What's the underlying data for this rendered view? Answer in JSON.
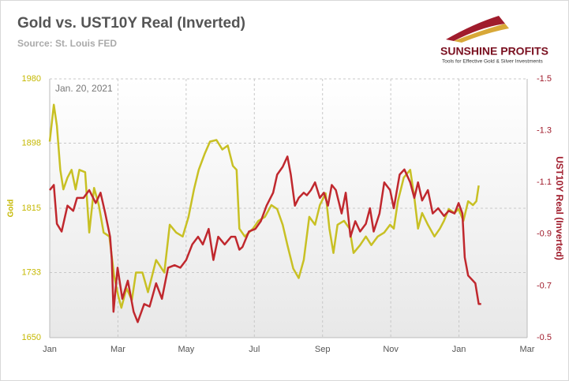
{
  "chart_data": {
    "type": "line",
    "title": "Gold vs. UST10Y Real (Inverted)",
    "subtitle": "Source: St. Louis FED",
    "annotation": "Jan. 20, 2021",
    "logo": {
      "name": "SUNSHINE PROFITS",
      "tagline": "Tools for Effective Gold & Silver Investments"
    },
    "ylabel": "Gold",
    "y2label": "UST10Y Real (Inverted)",
    "xlim": [
      0,
      14
    ],
    "xticks": [
      {
        "value": 0,
        "label": "Jan"
      },
      {
        "value": 2,
        "label": "Mar"
      },
      {
        "value": 4,
        "label": "May"
      },
      {
        "value": 6,
        "label": "Jul"
      },
      {
        "value": 8,
        "label": "Sep"
      },
      {
        "value": 10,
        "label": "Nov"
      },
      {
        "value": 12,
        "label": "Jan"
      },
      {
        "value": 14,
        "label": "Mar"
      }
    ],
    "ylim": [
      1650,
      1980
    ],
    "yticks": [
      1650,
      1733,
      1815,
      1898,
      1980
    ],
    "y2lim": [
      -0.5,
      -1.5
    ],
    "y2ticks": [
      -0.5,
      -0.7,
      -0.9,
      -1.1,
      -1.3,
      -1.5
    ],
    "grid": true,
    "y_color": "#c5b800",
    "y2_color": "#a01c2c",
    "series": [
      {
        "color": "#c8c024",
        "x": [
          0,
          0.12,
          0.21,
          0.31,
          0.4,
          0.52,
          0.64,
          0.76,
          0.87,
          1.04,
          1.16,
          1.3,
          1.44,
          1.58,
          1.75,
          1.89,
          2.01,
          2.1,
          2.25,
          2.41,
          2.53,
          2.72,
          2.88,
          3.12,
          3.36,
          3.52,
          3.71,
          3.9,
          4.07,
          4.23,
          4.37,
          4.54,
          4.7,
          4.89,
          5.06,
          5.22,
          5.37,
          5.48,
          5.56,
          5.72,
          5.96,
          6.12,
          6.31,
          6.5,
          6.67,
          6.83,
          6.97,
          7.14,
          7.3,
          7.45,
          7.61,
          7.78,
          7.92,
          8.09,
          8.2,
          8.32,
          8.44,
          8.63,
          8.79,
          8.91,
          9.1,
          9.27,
          9.43,
          9.62,
          9.81,
          9.98,
          10.09,
          10.21,
          10.38,
          10.57,
          10.69,
          10.8,
          10.92,
          11.09,
          11.28,
          11.44,
          11.56,
          11.7,
          11.87,
          11.99,
          12.13,
          12.27,
          12.41,
          12.51,
          12.58
        ],
        "values": [
          1900,
          1947,
          1920,
          1864,
          1839,
          1854,
          1864,
          1839,
          1864,
          1861,
          1784,
          1841,
          1819,
          1784,
          1779,
          1728,
          1703,
          1688,
          1713,
          1698,
          1733,
          1733,
          1708,
          1749,
          1733,
          1794,
          1784,
          1779,
          1804,
          1839,
          1864,
          1884,
          1900,
          1902,
          1890,
          1895,
          1869,
          1864,
          1789,
          1779,
          1789,
          1799,
          1804,
          1819,
          1814,
          1794,
          1768,
          1738,
          1726,
          1749,
          1804,
          1794,
          1819,
          1834,
          1789,
          1758,
          1794,
          1799,
          1789,
          1758,
          1768,
          1779,
          1768,
          1779,
          1784,
          1794,
          1789,
          1824,
          1854,
          1864,
          1829,
          1789,
          1809,
          1794,
          1779,
          1789,
          1799,
          1814,
          1809,
          1814,
          1799,
          1824,
          1819,
          1824,
          1844
        ]
      },
      {
        "color": "#c0282e",
        "axis": "y2",
        "x": [
          0,
          0.12,
          0.21,
          0.35,
          0.52,
          0.69,
          0.8,
          0.99,
          1.16,
          1.35,
          1.49,
          1.63,
          1.77,
          1.82,
          1.87,
          1.99,
          2.13,
          2.29,
          2.46,
          2.58,
          2.77,
          2.93,
          3.12,
          3.29,
          3.47,
          3.66,
          3.83,
          4.0,
          4.18,
          4.35,
          4.49,
          4.66,
          4.8,
          4.94,
          5.13,
          5.32,
          5.44,
          5.56,
          5.65,
          5.84,
          6.03,
          6.19,
          6.36,
          6.55,
          6.67,
          6.83,
          6.97,
          7.07,
          7.19,
          7.3,
          7.45,
          7.54,
          7.66,
          7.78,
          7.92,
          8.04,
          8.16,
          8.27,
          8.39,
          8.56,
          8.68,
          8.82,
          8.96,
          9.1,
          9.27,
          9.39,
          9.5,
          9.67,
          9.81,
          9.98,
          10.09,
          10.26,
          10.4,
          10.57,
          10.69,
          10.8,
          10.92,
          11.09,
          11.23,
          11.39,
          11.56,
          11.7,
          11.87,
          11.99,
          12.1,
          12.17,
          12.27,
          12.41,
          12.48,
          12.58,
          12.65
        ],
        "values": [
          -1.07,
          -1.09,
          -0.94,
          -0.91,
          -1.01,
          -0.99,
          -1.04,
          -1.04,
          -1.07,
          -1.02,
          -1.06,
          -0.98,
          -0.89,
          -0.8,
          -0.6,
          -0.77,
          -0.65,
          -0.72,
          -0.6,
          -0.56,
          -0.63,
          -0.62,
          -0.71,
          -0.65,
          -0.77,
          -0.78,
          -0.77,
          -0.8,
          -0.86,
          -0.89,
          -0.86,
          -0.92,
          -0.8,
          -0.89,
          -0.86,
          -0.89,
          -0.89,
          -0.84,
          -0.85,
          -0.91,
          -0.92,
          -0.95,
          -1.01,
          -1.06,
          -1.13,
          -1.16,
          -1.2,
          -1.13,
          -1.01,
          -1.04,
          -1.06,
          -1.05,
          -1.07,
          -1.1,
          -1.04,
          -1.06,
          -1.01,
          -1.09,
          -1.07,
          -0.98,
          -1.06,
          -0.89,
          -0.95,
          -0.91,
          -0.94,
          -1.0,
          -0.91,
          -0.98,
          -1.1,
          -1.07,
          -1.0,
          -1.13,
          -1.15,
          -1.1,
          -1.04,
          -1.1,
          -1.03,
          -1.07,
          -0.98,
          -1.0,
          -0.97,
          -0.99,
          -0.98,
          -1.02,
          -0.98,
          -0.81,
          -0.74,
          -0.72,
          -0.71,
          -0.63,
          -0.63
        ]
      }
    ]
  }
}
